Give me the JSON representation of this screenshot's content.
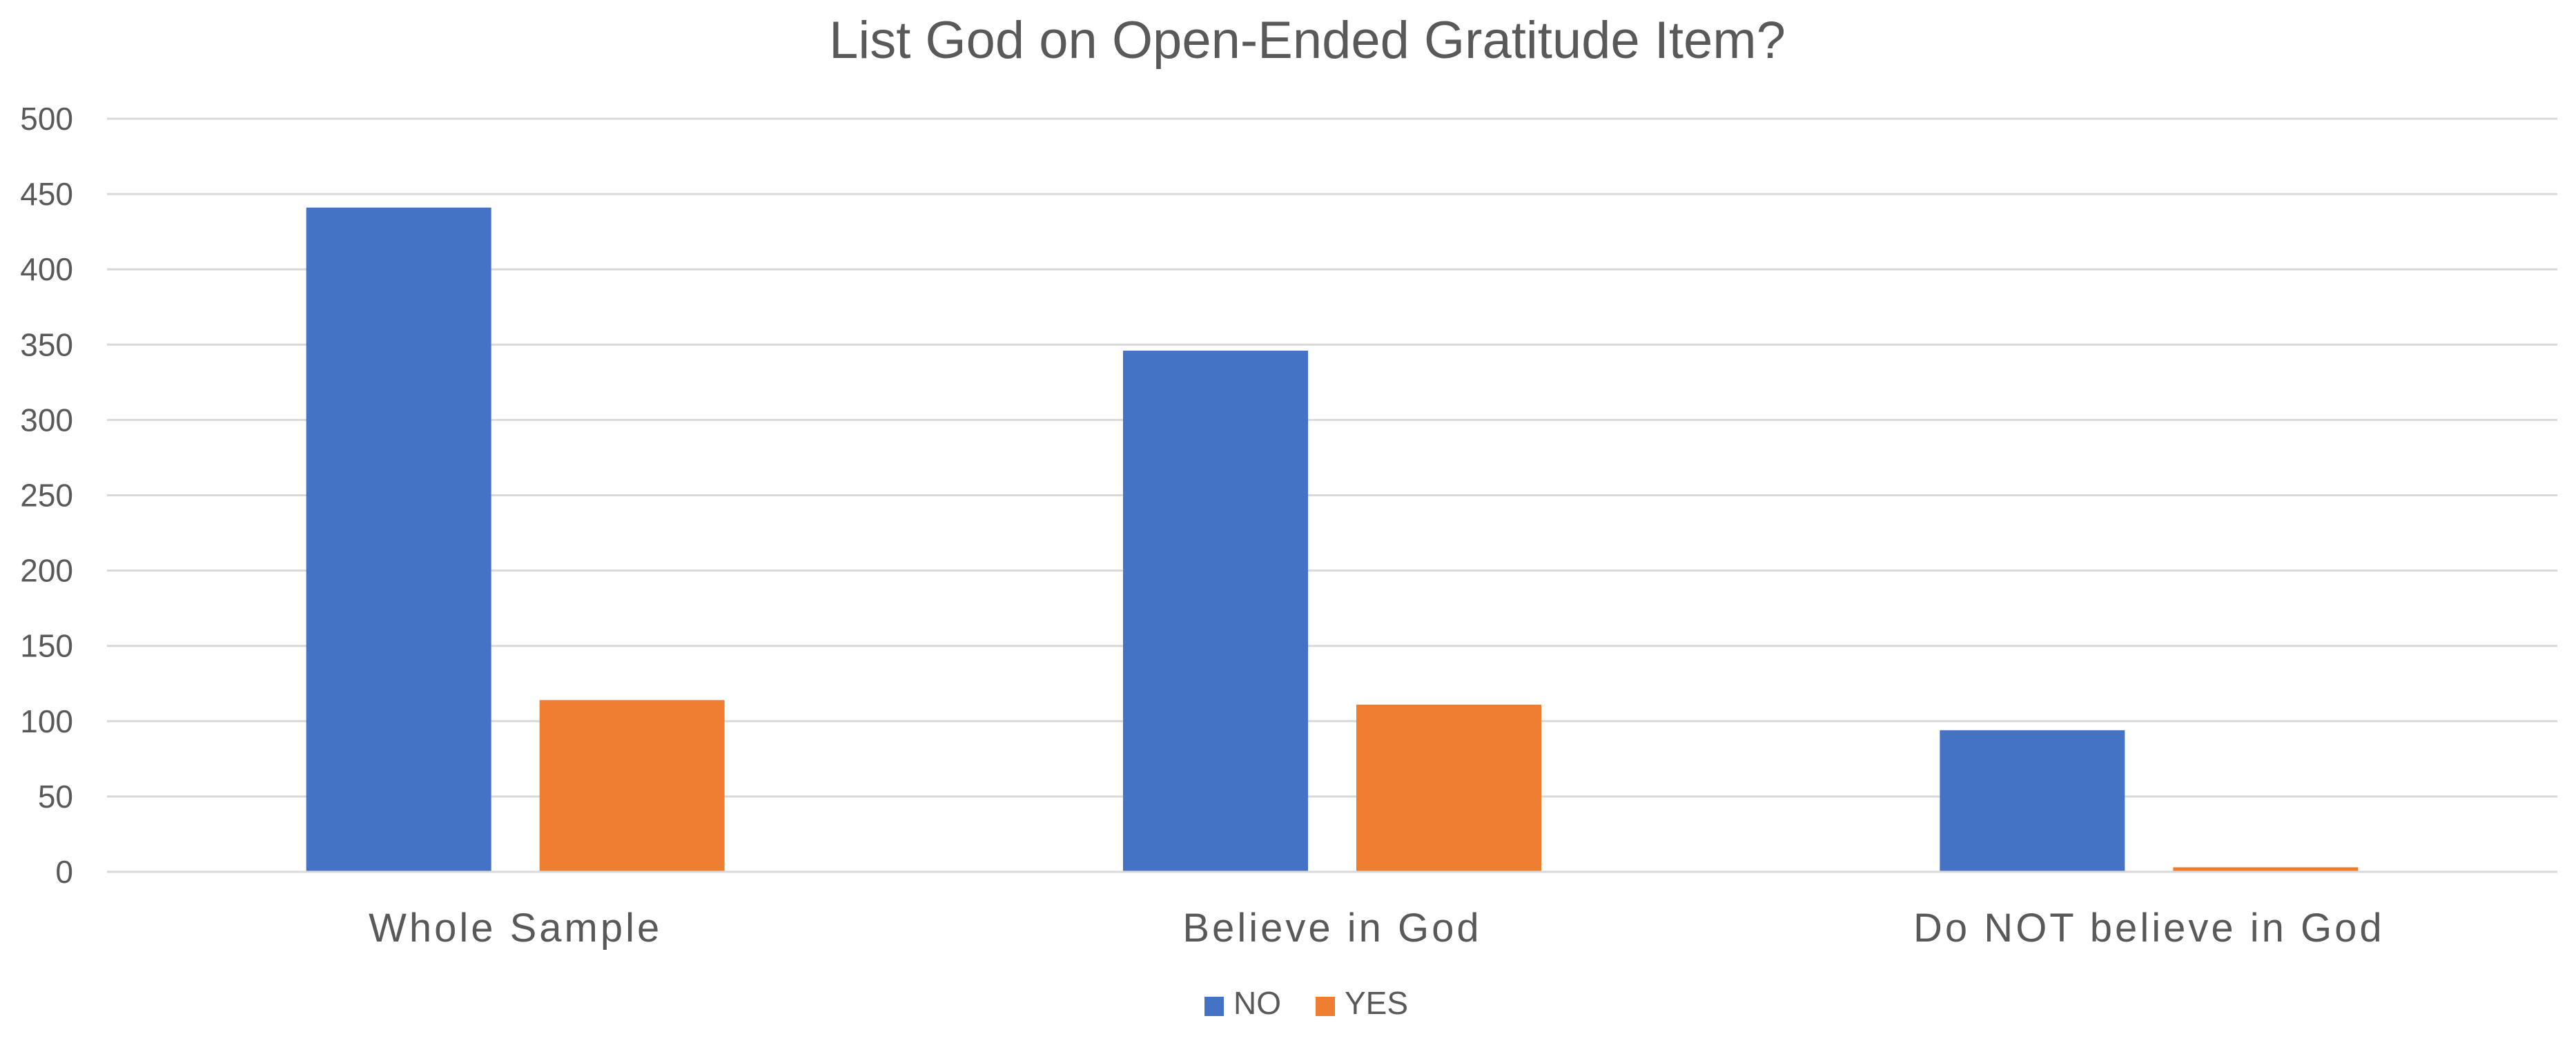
{
  "chart_data": {
    "type": "bar",
    "title": "List God on Open-Ended Gratitude Item?",
    "categories": [
      "Whole Sample",
      "Believe in God",
      "Do NOT believe in God"
    ],
    "series": [
      {
        "name": "NO",
        "color": "#4472C4",
        "values": [
          441,
          346,
          94
        ]
      },
      {
        "name": "YES",
        "color": "#ED7D31",
        "values": [
          114,
          111,
          3
        ]
      }
    ],
    "ylim": [
      0,
      500
    ],
    "yticks": [
      0,
      50,
      100,
      150,
      200,
      250,
      300,
      350,
      400,
      450,
      500
    ],
    "grid": true,
    "legend_position": "bottom"
  }
}
